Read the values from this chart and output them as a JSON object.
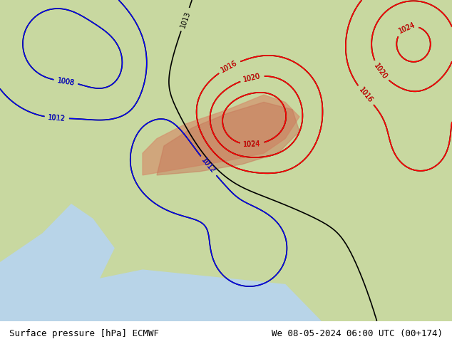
{
  "title_left": "Surface pressure [hPa] ECMWF",
  "title_right": "We 08-05-2024 06:00 UTC (00+174)",
  "background_color": "#d6e8f5",
  "land_color": "#c8d8a8",
  "text_color": "#000000",
  "fig_width": 6.34,
  "fig_height": 4.9,
  "dpi": 100
}
